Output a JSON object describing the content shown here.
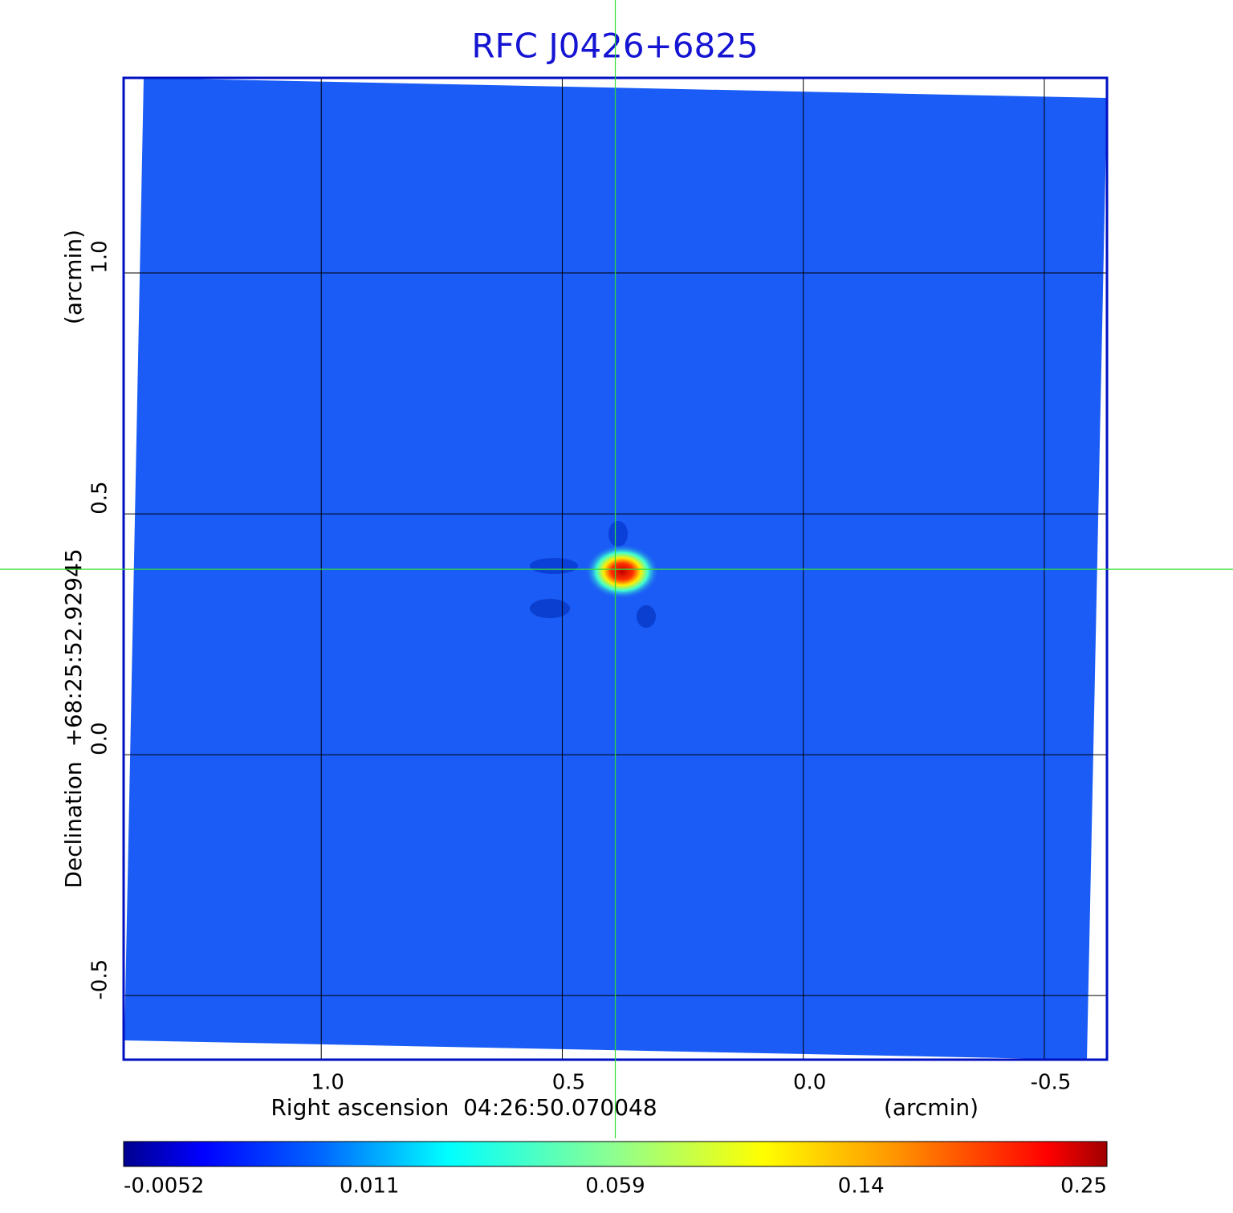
{
  "chart_data": {
    "type": "image",
    "title": "RFC J0426+6825",
    "x_label": "Right ascension  04:26:50.070048",
    "y_label": "Declination  +68:25:52.92945",
    "x_unit": "(arcmin)",
    "y_unit": "(arcmin)",
    "xlim": [
      1.41,
      -0.63
    ],
    "ylim": [
      -0.633,
      1.405
    ],
    "xticks": [
      {
        "value": 1,
        "label": "1.0"
      },
      0.5,
      {
        "value": 0,
        "label": "0.0"
      },
      -0.5
    ],
    "yticks": [
      {
        "value": 1,
        "label": "1.0"
      },
      0.5,
      {
        "value": 0,
        "label": "0.0"
      },
      -0.5
    ],
    "grid": true,
    "crosshair": {
      "x": 0.39,
      "y": 0.385
    },
    "colorbar": {
      "colormap": "jet",
      "ticks": [
        -0.0052,
        0.011,
        0.059,
        0.14,
        0.25
      ]
    }
  }
}
